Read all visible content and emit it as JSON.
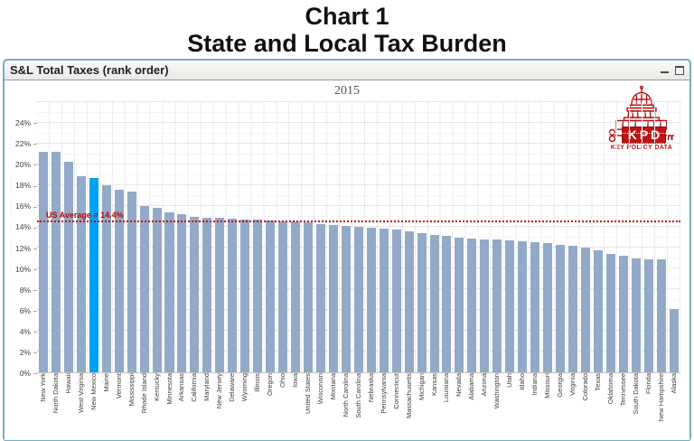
{
  "page": {
    "title_line1": "Chart 1",
    "title_line2": "State and Local Tax Burden"
  },
  "window": {
    "title": "S&L Total Taxes (rank order)",
    "icons": [
      "minimize-icon",
      "maximize-icon"
    ]
  },
  "logo": {
    "kpd": "KPD",
    "tagline": "KEY POLICY DATA",
    "icons": [
      "capitol-dome-icon",
      "key-icon"
    ],
    "brand_color": "#c01313"
  },
  "chart_data": {
    "type": "bar",
    "title": "2015",
    "xlabel": "",
    "ylabel": "",
    "ylim": [
      0,
      26
    ],
    "grid": true,
    "legend": false,
    "yticks": [
      "0%",
      "2%",
      "4%",
      "6%",
      "8%",
      "10%",
      "12%",
      "14%",
      "16%",
      "18%",
      "20%",
      "22%",
      "24%"
    ],
    "categories": [
      "New York",
      "North Dakota",
      "Hawaii",
      "West Virginia",
      "New Mexico",
      "Maine",
      "Vermont",
      "Mississippi",
      "Rhode Island",
      "Kentucky",
      "Minnesota",
      "Arkansas",
      "California",
      "Maryland",
      "New Jersey",
      "Delaware",
      "Wyoming",
      "Illinois",
      "Oregon",
      "Ohio",
      "Iowa",
      "United States",
      "Wisconsin",
      "Montana",
      "North Carolina",
      "South Carolina",
      "Nebraska",
      "Pennsylvania",
      "Connecticut",
      "Massachusetts",
      "Michigan",
      "Kansas",
      "Louisiana",
      "Nevada",
      "Alabama",
      "Arizona",
      "Washington",
      "Utah",
      "Idaho",
      "Indiana",
      "Missouri",
      "Georgia",
      "Virginia",
      "Colorado",
      "Texas",
      "Oklahoma",
      "Tennessee",
      "South Dakota",
      "Florida",
      "New Hampshire",
      "Alaska"
    ],
    "values": [
      21.2,
      21.2,
      20.3,
      18.9,
      18.7,
      18.0,
      17.6,
      17.4,
      16.0,
      15.8,
      15.4,
      15.2,
      15.0,
      14.9,
      14.9,
      14.8,
      14.7,
      14.7,
      14.6,
      14.5,
      14.5,
      14.4,
      14.3,
      14.2,
      14.1,
      14.0,
      13.9,
      13.8,
      13.7,
      13.6,
      13.4,
      13.2,
      13.1,
      13.0,
      12.9,
      12.8,
      12.8,
      12.7,
      12.6,
      12.5,
      12.4,
      12.3,
      12.2,
      12.0,
      11.7,
      11.4,
      11.2,
      11.0,
      10.9,
      10.9,
      6.1
    ],
    "bar_color": "#92aac8",
    "highlight_index": 4,
    "highlight_category": "New Mexico",
    "highlight_color": "#00a1f1",
    "average_line": {
      "label": "US Average = 14.4%",
      "value": 14.4,
      "color": "#c00000"
    }
  }
}
